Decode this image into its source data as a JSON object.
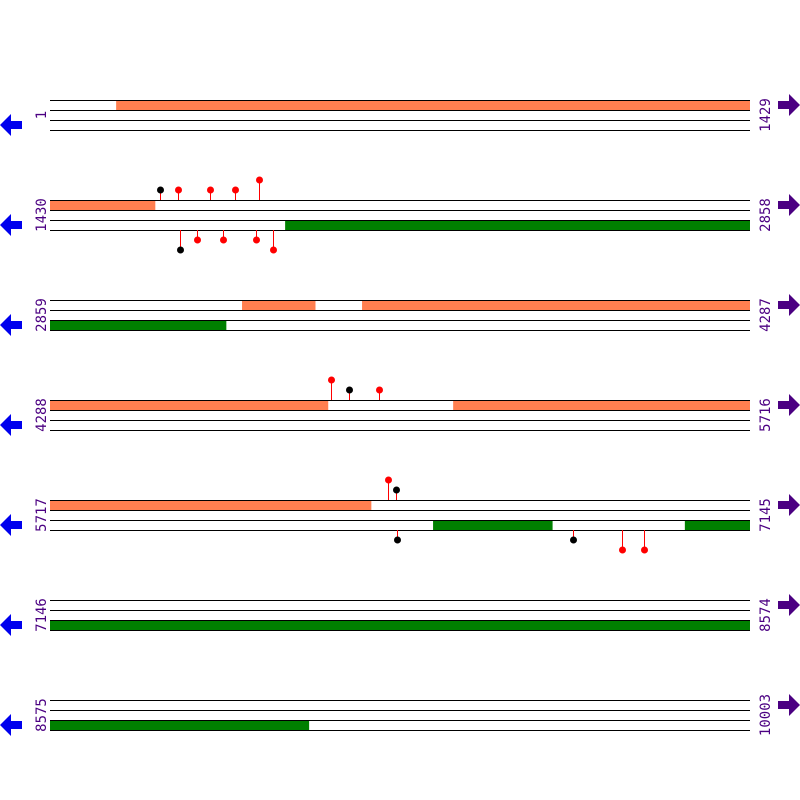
{
  "colors": {
    "top_feature": "#ff7f50",
    "bottom_feature": "#008000",
    "marker_red": "#ff0000",
    "marker_black": "#000000",
    "label": "#4b0082",
    "left_arrow": "#0000ee",
    "right_arrow": "#4b0082"
  },
  "icons": {
    "left": "arrow-left-icon",
    "right": "arrow-right-icon"
  },
  "rows": [
    {
      "start": "1",
      "end": "1429",
      "top": [
        [
          136,
          1429
        ]
      ],
      "bottom": [],
      "markers": []
    },
    {
      "start": "1430",
      "end": "2858",
      "top": [
        [
          1430,
          1644
        ]
      ],
      "bottom": [
        [
          1910,
          2858
        ]
      ],
      "markers": [
        {
          "pos": 1655,
          "strand": "top",
          "color": "black",
          "level": 1
        },
        {
          "pos": 1691,
          "strand": "top",
          "color": "red",
          "level": 1
        },
        {
          "pos": 1757,
          "strand": "top",
          "color": "red",
          "level": 1
        },
        {
          "pos": 1808,
          "strand": "top",
          "color": "red",
          "level": 1
        },
        {
          "pos": 1857,
          "strand": "top",
          "color": "red",
          "level": 2
        },
        {
          "pos": 1695,
          "strand": "bottom",
          "color": "black",
          "level": 2
        },
        {
          "pos": 1730,
          "strand": "bottom",
          "color": "red",
          "level": 1
        },
        {
          "pos": 1783,
          "strand": "bottom",
          "color": "red",
          "level": 1
        },
        {
          "pos": 1850,
          "strand": "bottom",
          "color": "red",
          "level": 1
        },
        {
          "pos": 1885,
          "strand": "bottom",
          "color": "red",
          "level": 2
        }
      ]
    },
    {
      "start": "2859",
      "end": "4287",
      "top": [
        [
          3251,
          3400
        ],
        [
          3496,
          4287
        ]
      ],
      "bottom": [
        [
          2859,
          3218
        ]
      ],
      "markers": []
    },
    {
      "start": "4288",
      "end": "5716",
      "top": [
        [
          4288,
          4855
        ],
        [
          5111,
          5716
        ]
      ],
      "bottom": [],
      "markers": [
        {
          "pos": 4862,
          "strand": "top",
          "color": "red",
          "level": 2
        },
        {
          "pos": 4898,
          "strand": "top",
          "color": "black",
          "level": 1
        },
        {
          "pos": 4960,
          "strand": "top",
          "color": "red",
          "level": 1
        }
      ]
    },
    {
      "start": "5717",
      "end": "7145",
      "top": [
        [
          5717,
          6372
        ]
      ],
      "bottom": [
        [
          6499,
          6742
        ],
        [
          7013,
          7145
        ]
      ],
      "markers": [
        {
          "pos": 6407,
          "strand": "top",
          "color": "red",
          "level": 2
        },
        {
          "pos": 6423,
          "strand": "top",
          "color": "black",
          "level": 1
        },
        {
          "pos": 6425,
          "strand": "bottom",
          "color": "black",
          "level": 1
        },
        {
          "pos": 6784,
          "strand": "bottom",
          "color": "black",
          "level": 1
        },
        {
          "pos": 6884,
          "strand": "bottom",
          "color": "red",
          "level": 2
        },
        {
          "pos": 6929,
          "strand": "bottom",
          "color": "red",
          "level": 2
        }
      ]
    },
    {
      "start": "7146",
      "end": "8574",
      "top": [],
      "bottom": [
        [
          7146,
          8574
        ]
      ],
      "markers": []
    },
    {
      "start": "8575",
      "end": "10003",
      "top": [],
      "bottom": [
        [
          8575,
          9103
        ]
      ],
      "markers": []
    }
  ]
}
